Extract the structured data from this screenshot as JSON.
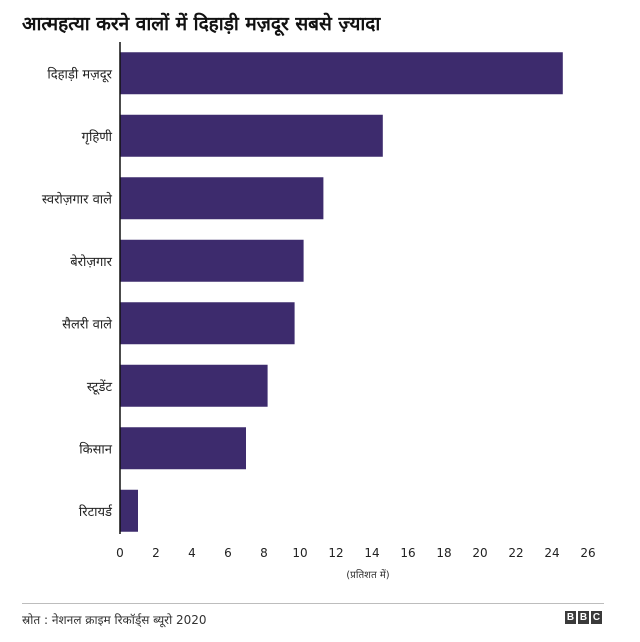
{
  "title": "आत्महत्या करने वालों में दिहाड़ी मज़दूर सबसे ज़्यादा",
  "source": "स्रोत : नेशनल क्राइम रिकॉर्ड्स ब्यूरो 2020",
  "logo": [
    "B",
    "B",
    "C"
  ],
  "colors": {
    "bar": "#3d2b6d",
    "axis": "#111111"
  },
  "chart_data": {
    "type": "bar",
    "orientation": "horizontal",
    "categories": [
      "दिहाड़ी मज़दूर",
      "गृहिणी",
      "स्वरोज़गार वाले",
      "बेरोज़गार",
      "सैलरी वाले",
      "स्टूडेंट",
      "किसान",
      "रिटायर्ड"
    ],
    "values": [
      24.6,
      14.6,
      11.3,
      10.2,
      9.7,
      8.2,
      7.0,
      1.0
    ],
    "xlabel": "(प्रतिशत में)",
    "ylabel": "",
    "xlim": [
      0,
      26
    ],
    "xticks": [
      0,
      2,
      4,
      6,
      8,
      10,
      12,
      14,
      16,
      18,
      20,
      22,
      24,
      26
    ],
    "grid": false,
    "legend": "none"
  }
}
